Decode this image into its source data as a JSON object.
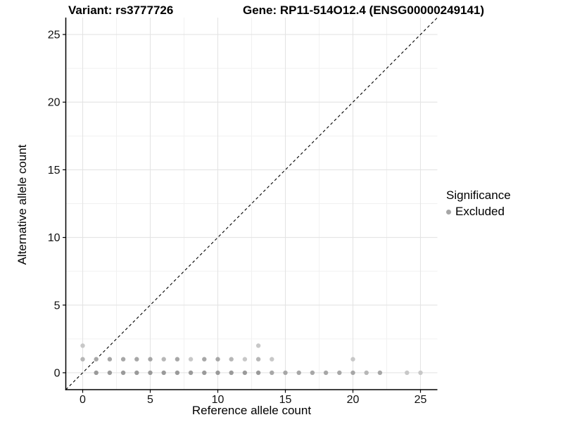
{
  "header": {
    "variant_title": "Variant: rs3777726",
    "gene_title": "Gene: RP11-514O12.4 (ENSG00000249141)"
  },
  "legend": {
    "title": "Significance",
    "items": [
      {
        "label": "Excluded",
        "color": "#a6a6a6"
      }
    ]
  },
  "colors": {
    "background": "#ffffff",
    "axis_line": "#000000",
    "tick_mark": "#000000",
    "grid_major": "#e4e4e4",
    "grid_minor": "#f1f1f1",
    "identity_line": "#000000",
    "shade_d": "#9a9a9a",
    "shade_m": "#a7a7a7",
    "shade_ml": "#b7b7b7",
    "shade_l": "#c8c8c8"
  },
  "chart_data": {
    "type": "scatter",
    "title": "Variant: rs3777726 | Gene: RP11-514O12.4 (ENSG00000249141)",
    "xlabel": "Reference allele count",
    "ylabel": "Alternative allele count",
    "xlim": [
      -1.25,
      26.25
    ],
    "ylim": [
      -1.25,
      26.25
    ],
    "x_ticks": [
      0,
      5,
      10,
      15,
      20,
      25
    ],
    "y_ticks": [
      0,
      5,
      10,
      15,
      20,
      25
    ],
    "x_minor": [
      2.5,
      7.5,
      12.5,
      17.5,
      22.5
    ],
    "y_minor": [
      2.5,
      7.5,
      12.5,
      17.5,
      22.5
    ],
    "grid": true,
    "legend_position": "right",
    "reference_line": {
      "type": "identity",
      "slope": 1,
      "intercept": 0,
      "style": "dashed"
    },
    "series": [
      {
        "name": "Excluded",
        "points": [
          [
            1,
            0,
            "d"
          ],
          [
            2,
            0,
            "d"
          ],
          [
            3,
            0,
            "d"
          ],
          [
            4,
            0,
            "d"
          ],
          [
            5,
            0,
            "d"
          ],
          [
            6,
            0,
            "d"
          ],
          [
            7,
            0,
            "d"
          ],
          [
            8,
            0,
            "d"
          ],
          [
            9,
            0,
            "d"
          ],
          [
            10,
            0,
            "d"
          ],
          [
            11,
            0,
            "d"
          ],
          [
            12,
            0,
            "d"
          ],
          [
            13,
            0,
            "d"
          ],
          [
            14,
            0,
            "m"
          ],
          [
            15,
            0,
            "m"
          ],
          [
            16,
            0,
            "m"
          ],
          [
            17,
            0,
            "m"
          ],
          [
            18,
            0,
            "m"
          ],
          [
            19,
            0,
            "m"
          ],
          [
            20,
            0,
            "m"
          ],
          [
            21,
            0,
            "ml"
          ],
          [
            22,
            0,
            "m"
          ],
          [
            24,
            0,
            "l"
          ],
          [
            25,
            0,
            "l"
          ],
          [
            0,
            1,
            "ml"
          ],
          [
            1,
            1,
            "m"
          ],
          [
            2,
            1,
            "m"
          ],
          [
            3,
            1,
            "m"
          ],
          [
            4,
            1,
            "m"
          ],
          [
            5,
            1,
            "m"
          ],
          [
            6,
            1,
            "ml"
          ],
          [
            7,
            1,
            "m"
          ],
          [
            8,
            1,
            "l"
          ],
          [
            9,
            1,
            "m"
          ],
          [
            10,
            1,
            "m"
          ],
          [
            11,
            1,
            "ml"
          ],
          [
            12,
            1,
            "l"
          ],
          [
            13,
            1,
            "ml"
          ],
          [
            14,
            1,
            "l"
          ],
          [
            20,
            1,
            "l"
          ],
          [
            0,
            2,
            "l"
          ],
          [
            13,
            2,
            "l"
          ]
        ]
      }
    ]
  }
}
